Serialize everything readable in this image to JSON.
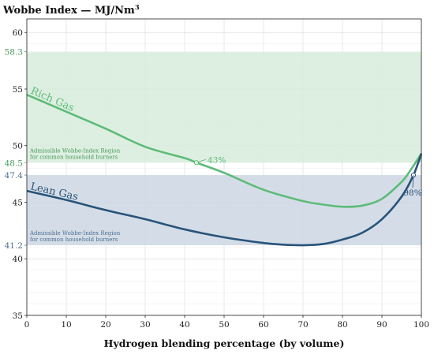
{
  "chart_data": {
    "type": "line",
    "title": "Wobbe Index — MJ/Nm",
    "title_sup": "3",
    "xlabel": "Hydrogen blending percentage (by volume)",
    "xlim": [
      0,
      100
    ],
    "ylim": [
      35,
      61.2
    ],
    "x_ticks": [
      0,
      10,
      20,
      30,
      40,
      50,
      60,
      70,
      80,
      90,
      100
    ],
    "y_ticks": [
      35,
      40,
      45,
      50,
      55,
      60
    ],
    "grid": true,
    "regions": [
      {
        "name": "rich",
        "y_min": 48.5,
        "y_max": 58.3,
        "y_min_label": "48.5",
        "y_max_label": "58.3",
        "label_line1": "Admissible Wobbe-Index Region",
        "label_line2": "for common household burners",
        "fill": "#d7ecdc",
        "text_color": "#4a9a5e"
      },
      {
        "name": "lean",
        "y_min": 41.2,
        "y_max": 47.4,
        "y_min_label": "41.2",
        "y_max_label": "47.4",
        "label_line1": "Admissible Wobbe-Index Region",
        "label_line2": "for common household burners",
        "fill": "#cdd7e3",
        "text_color": "#4e6f92"
      }
    ],
    "series": [
      {
        "name": "Rich Gas",
        "color": "#5dbb78",
        "x": [
          0,
          10,
          20,
          30,
          40,
          43,
          50,
          60,
          70,
          75,
          80,
          85,
          90,
          95,
          97,
          100
        ],
        "y": [
          54.5,
          53.0,
          51.5,
          49.9,
          48.9,
          48.5,
          47.6,
          46.1,
          45.1,
          44.8,
          44.6,
          44.7,
          45.3,
          46.8,
          47.7,
          49.3
        ]
      },
      {
        "name": "Lean Gas",
        "color": "#285379",
        "x": [
          0,
          10,
          20,
          30,
          40,
          50,
          60,
          65,
          70,
          75,
          80,
          85,
          90,
          95,
          98,
          100
        ],
        "y": [
          46.0,
          45.2,
          44.3,
          43.5,
          42.6,
          41.9,
          41.4,
          41.25,
          41.2,
          41.3,
          41.7,
          42.3,
          43.5,
          45.5,
          47.4,
          49.3
        ]
      }
    ],
    "annotations": [
      {
        "x": 43,
        "y": 48.5,
        "label": "43%",
        "series": "Rich Gas"
      },
      {
        "x": 98,
        "y": 47.4,
        "label": "98%",
        "series": "Lean Gas"
      }
    ]
  }
}
